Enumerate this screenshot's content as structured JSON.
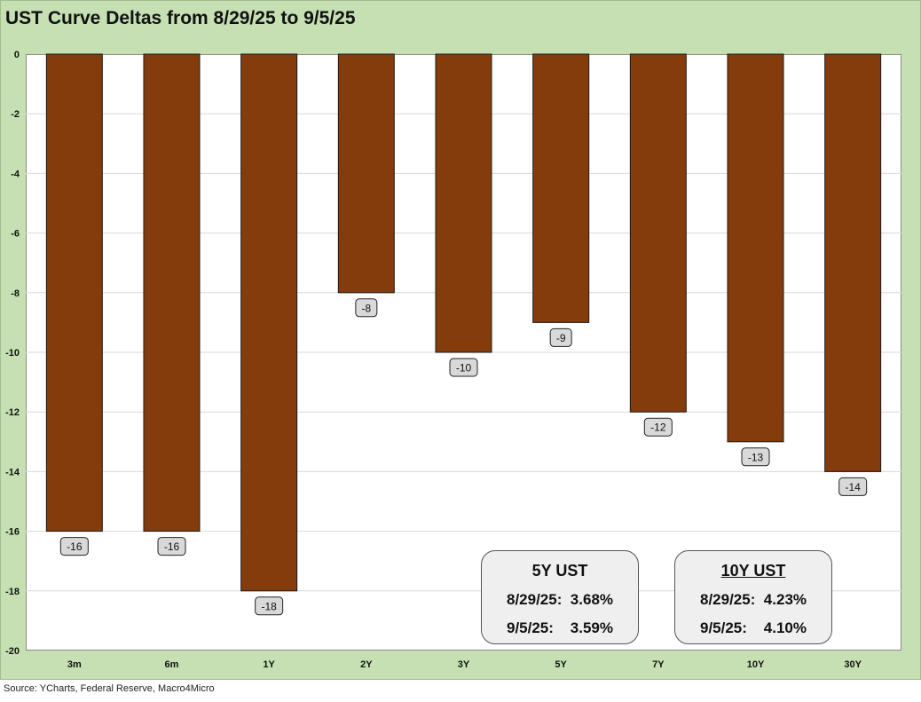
{
  "title": "UST Curve Deltas from 8/29/25 to 9/5/25",
  "source": "Source: YCharts, Federal Reserve, Macro4Micro",
  "colors": {
    "bar": "#843c0c",
    "frame": "#c6e0b4",
    "label_box": "#d9d9d9"
  },
  "chart_data": {
    "type": "bar",
    "title": "UST Curve Deltas from 8/29/25 to 9/5/25",
    "categories": [
      "3m",
      "6m",
      "1Y",
      "2Y",
      "3Y",
      "5Y",
      "7Y",
      "10Y",
      "30Y"
    ],
    "values": [
      -16,
      -16,
      -18,
      -8,
      -10,
      -9,
      -12,
      -13,
      -14
    ],
    "data_labels": [
      "-16",
      "-16",
      "-18",
      "-8",
      "-10",
      "-9",
      "-12",
      "-13",
      "-14"
    ],
    "ylim": [
      -20,
      0
    ],
    "yticks": [
      0,
      -2,
      -4,
      -6,
      -8,
      -10,
      -12,
      -14,
      -16,
      -18,
      -20
    ],
    "ytick_labels": [
      "0",
      "-2",
      "-4",
      "-6",
      "-8",
      "-10",
      "-12",
      "-14",
      "-16",
      "-18",
      "-20"
    ],
    "grid": true,
    "legend": "none"
  },
  "callouts": [
    {
      "title": "5Y UST",
      "row1": "8/29/25:  3.68%",
      "row2": "9/5/25:    3.59%"
    },
    {
      "title": "10Y UST",
      "row1": "8/29/25:  4.23%",
      "row2": "9/5/25:    4.10%"
    }
  ]
}
